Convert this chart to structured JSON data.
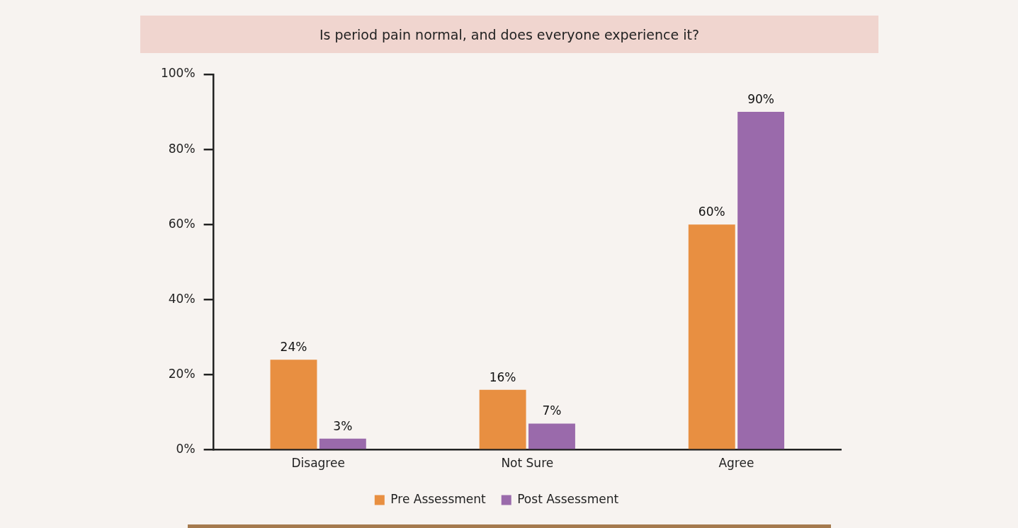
{
  "chart_data": {
    "type": "bar",
    "title": "Is period pain normal, and does everyone experience it?",
    "categories": [
      "Disagree",
      "Not Sure",
      "Agree"
    ],
    "series": [
      {
        "name": "Pre Assessment",
        "color": "#e88f41",
        "values": [
          24,
          16,
          60
        ],
        "value_labels": [
          "24%",
          "16%",
          "60%"
        ]
      },
      {
        "name": "Post Assessment",
        "color": "#9a6aab",
        "values": [
          3,
          7,
          90
        ],
        "value_labels": [
          "3%",
          "7%",
          "90%"
        ]
      }
    ],
    "ylim": [
      0,
      100
    ],
    "yticks": [
      {
        "value": 0,
        "label": "0%"
      },
      {
        "value": 20,
        "label": "20%"
      },
      {
        "value": 40,
        "label": "40%"
      },
      {
        "value": 60,
        "label": "60%"
      },
      {
        "value": 80,
        "label": "80%"
      },
      {
        "value": 100,
        "label": "100%"
      }
    ],
    "grid": false,
    "legend": "bottom"
  }
}
